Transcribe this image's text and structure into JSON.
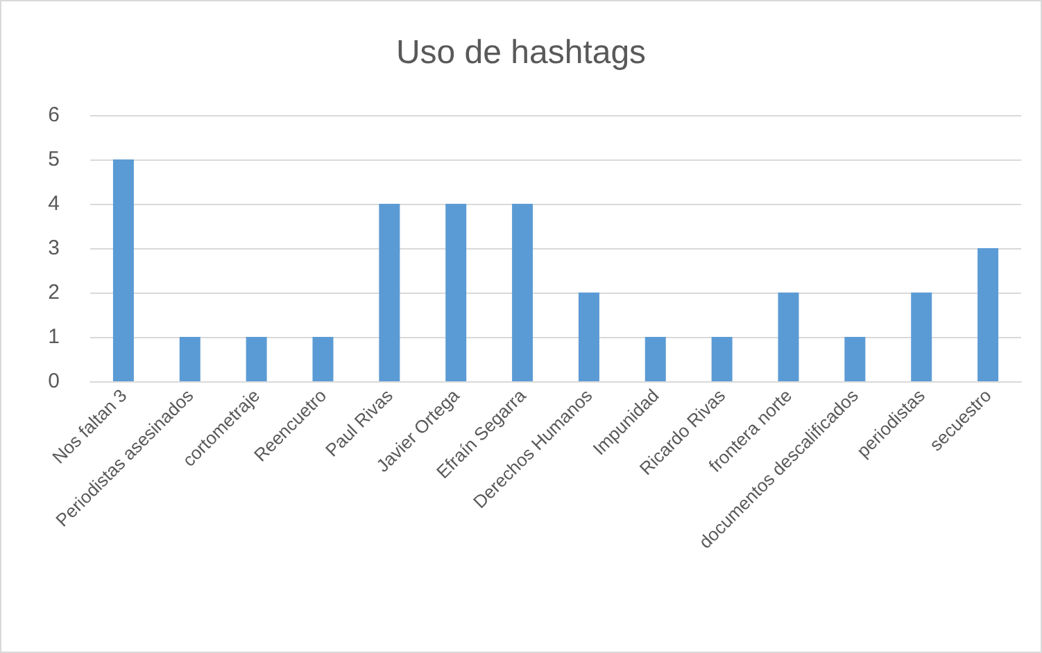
{
  "chart_data": {
    "type": "bar",
    "title": "Uso de hashtags",
    "categories": [
      "Nos faltan 3",
      "Periodistas asesinados",
      "cortometraje",
      "Reencuetro",
      "Paul Rivas",
      "Javier Ortega",
      "Efraín Segarra",
      "Derechos Humanos",
      "Impunidad",
      "Ricardo Rivas",
      "frontera norte",
      "documentos descalificados",
      "periodistas",
      "secuestro"
    ],
    "values": [
      5,
      1,
      1,
      1,
      4,
      4,
      4,
      2,
      1,
      1,
      2,
      1,
      2,
      3
    ],
    "color": "#5b9bd5",
    "ylim": [
      0,
      6
    ],
    "yticks": [
      0,
      1,
      2,
      3,
      4,
      5,
      6
    ],
    "grid": "y"
  }
}
